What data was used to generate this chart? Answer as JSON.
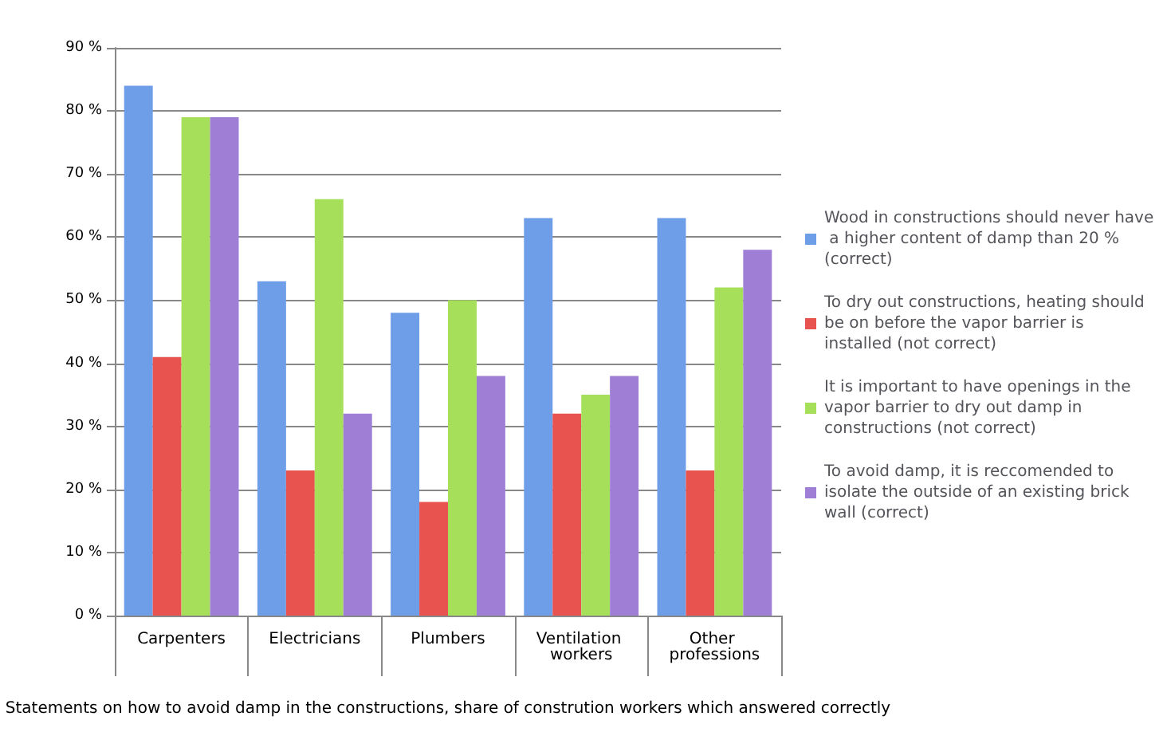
{
  "chart_data": {
    "type": "bar",
    "xlabel": "Statements on how to avoid damp in the constructions, share of constrution workers which answered correctly",
    "categories": [
      "Carpenters",
      "Electricians",
      "Plumbers",
      "Ventilation workers",
      "Other professions"
    ],
    "series": [
      {
        "name": "Wood in constructions should never have a higher content of damp than 20 % (correct)",
        "color": "#6f9ee8",
        "values": [
          84,
          53,
          48,
          63,
          63
        ]
      },
      {
        "name": "To dry out constructions, heating should be on before the vapor barrier is installed (not correct)",
        "color": "#e8534f",
        "values": [
          41,
          23,
          18,
          32,
          23
        ]
      },
      {
        "name": "It is important to have openings in the vapor barrier to dry out damp in constructions (not correct)",
        "color": "#a6e05a",
        "values": [
          79,
          66,
          50,
          35,
          52
        ]
      },
      {
        "name": "To avoid damp, it is reccomended to isolate the outside of an existing brick wall (correct)",
        "color": "#9f7fd6",
        "values": [
          79,
          32,
          38,
          38,
          58
        ]
      }
    ],
    "ylim": [
      0,
      90
    ],
    "yticks": [
      {
        "value": 0,
        "label": "0 %"
      },
      {
        "value": 10,
        "label": "10 %"
      },
      {
        "value": 20,
        "label": "20 %"
      },
      {
        "value": 30,
        "label": "30 %"
      },
      {
        "value": 40,
        "label": "40 %"
      },
      {
        "value": 50,
        "label": "50 %"
      },
      {
        "value": 60,
        "label": "60 %"
      },
      {
        "value": 70,
        "label": "70 %"
      },
      {
        "value": 80,
        "label": "80 %"
      },
      {
        "value": 90,
        "label": "90 %"
      }
    ],
    "grid": "y",
    "legend": "right"
  }
}
